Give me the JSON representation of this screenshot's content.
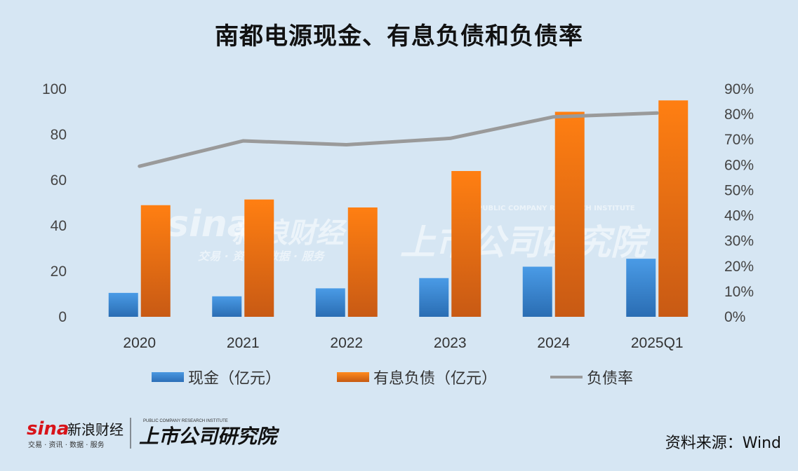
{
  "title": "南都电源现金、有息负债和负债率",
  "source_label": "资料来源：Wind",
  "watermark": {
    "brand": "sina",
    "brand_cn": "新浪财经",
    "brand_sub": "交易 · 资讯 · 数据 · 服务",
    "institute": "上市公司研究院",
    "institute_en": "PUBLIC COMPANY RESEARCH INSTITUTE"
  },
  "colors": {
    "cash": "#3f8ad6",
    "debt": "#f07a16",
    "ratio": "#9a9a9a",
    "background": "#d6e6f3"
  },
  "chart_data": {
    "type": "bar",
    "categories": [
      "2020",
      "2021",
      "2022",
      "2023",
      "2024",
      "2025Q1"
    ],
    "series": [
      {
        "name": "现金（亿元）",
        "type": "bar",
        "axis": "left",
        "values": [
          10.5,
          9,
          12.5,
          17,
          22,
          25.5
        ]
      },
      {
        "name": "有息负债（亿元）",
        "type": "bar",
        "axis": "left",
        "values": [
          49,
          51.5,
          48,
          64,
          90,
          95
        ]
      },
      {
        "name": "负债率",
        "type": "line",
        "axis": "right",
        "values": [
          59.5,
          69.5,
          68,
          70.5,
          79,
          80.5
        ]
      }
    ],
    "yticks_left": [
      "0",
      "20",
      "40",
      "60",
      "80",
      "100"
    ],
    "yticks_right": [
      "0%",
      "10%",
      "20%",
      "30%",
      "40%",
      "50%",
      "60%",
      "70%",
      "80%",
      "90%"
    ],
    "ylim_left": [
      0,
      100
    ],
    "ylim_right": [
      0,
      90
    ],
    "grid": false,
    "legend": "bottom"
  }
}
